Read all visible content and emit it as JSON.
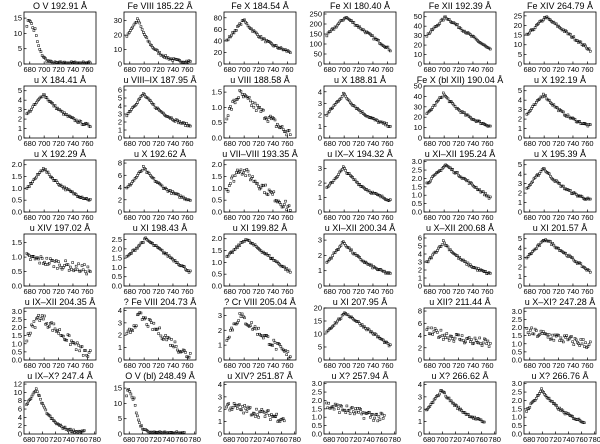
{
  "chart_data": [
    {
      "type": "scatter",
      "title": "O V 192.91 Å",
      "xticks": [
        "680",
        "700",
        "720",
        "740",
        "760"
      ],
      "yticks": [
        "0",
        "5",
        "10",
        "15"
      ],
      "ylim": [
        0,
        17
      ],
      "xlim": [
        672,
        772
      ],
      "profile": "early"
    },
    {
      "type": "scatter",
      "title": "Fe VIII 185.22 Å",
      "xticks": [
        "680",
        "700",
        "720",
        "740",
        "760"
      ],
      "yticks": [
        "0",
        "10",
        "20",
        "30"
      ],
      "ylim": [
        0,
        36
      ],
      "xlim": [
        672,
        772
      ],
      "profile": "peak690"
    },
    {
      "type": "scatter",
      "title": "Fe X 184.54 Å",
      "xticks": [
        "680",
        "700",
        "720",
        "740",
        "760"
      ],
      "yticks": [
        "0",
        "20",
        "40",
        "60",
        "80"
      ],
      "ylim": [
        0,
        90
      ],
      "xlim": [
        672,
        772
      ],
      "profile": "peak700"
    },
    {
      "type": "scatter",
      "title": "Fe XI 180.40 Å",
      "xticks": [
        "680",
        "700",
        "720",
        "740",
        "760"
      ],
      "yticks": [
        "0",
        "50",
        "100",
        "150",
        "200",
        "250"
      ],
      "ylim": [
        0,
        260
      ],
      "xlim": [
        672,
        772
      ],
      "profile": "broad"
    },
    {
      "type": "scatter",
      "title": "Fe XII 192.39 Å",
      "xticks": [
        "680",
        "700",
        "720",
        "740",
        "760"
      ],
      "yticks": [
        "0",
        "10",
        "20",
        "30",
        "40",
        "50"
      ],
      "ylim": [
        0,
        55
      ],
      "xlim": [
        672,
        772
      ],
      "profile": "broad"
    },
    {
      "type": "scatter",
      "title": "Fe XIV 264.79 Å",
      "xticks": [
        "680",
        "700",
        "720",
        "740",
        "760"
      ],
      "yticks": [
        "0",
        "5",
        "10",
        "15",
        "20",
        "25"
      ],
      "ylim": [
        0,
        27
      ],
      "xlim": [
        672,
        772
      ],
      "profile": "broad"
    },
    {
      "type": "scatter",
      "title": "u X 184.41 Å",
      "xticks": [
        "680",
        "700",
        "720",
        "740",
        "760"
      ],
      "yticks": [
        "0",
        "1",
        "2",
        "3",
        "4",
        "5"
      ],
      "ylim": [
        0,
        5.5
      ],
      "xlim": [
        672,
        772
      ],
      "profile": "peak700"
    },
    {
      "type": "scatter",
      "title": "u VIII–IX 187.95 Å",
      "xticks": [
        "680",
        "700",
        "720",
        "740",
        "760"
      ],
      "yticks": [
        "0",
        "1",
        "2",
        "3",
        "4",
        "5",
        "6"
      ],
      "ylim": [
        0,
        6.5
      ],
      "xlim": [
        672,
        772
      ],
      "profile": "peak700"
    },
    {
      "type": "scatter",
      "title": "u VIII 188.58 Å",
      "xticks": [
        "680",
        "700",
        "720",
        "740",
        "760"
      ],
      "yticks": [
        "0.0",
        "0.5",
        "1.0",
        "1.5"
      ],
      "ylim": [
        0,
        1.7
      ],
      "xlim": [
        672,
        772
      ],
      "profile": "scatter_peak"
    },
    {
      "type": "scatter",
      "title": "u X 188.81 Å",
      "xticks": [
        "680",
        "700",
        "720",
        "740",
        "760"
      ],
      "yticks": [
        "0",
        "1",
        "2",
        "3",
        "4"
      ],
      "ylim": [
        0,
        4.5
      ],
      "xlim": [
        672,
        772
      ],
      "profile": "peak700"
    },
    {
      "type": "scatter",
      "title": "Fe X (bl XII) 190.04 Å",
      "xticks": [
        "680",
        "700",
        "720",
        "740",
        "760"
      ],
      "yticks": [
        "0",
        "10",
        "20",
        "30",
        "40",
        "50"
      ],
      "ylim": [
        0,
        50
      ],
      "xlim": [
        672,
        772
      ],
      "profile": "peak700"
    },
    {
      "type": "scatter",
      "title": "u X 192.19 Å",
      "xticks": [
        "680",
        "700",
        "720",
        "740",
        "760"
      ],
      "yticks": [
        "0",
        "1",
        "2",
        "3",
        "4",
        "5"
      ],
      "ylim": [
        0,
        5.5
      ],
      "xlim": [
        672,
        772
      ],
      "profile": "peak700"
    },
    {
      "type": "scatter",
      "title": "u X 192.29 Å",
      "xticks": [
        "680",
        "700",
        "720",
        "740",
        "760"
      ],
      "yticks": [
        "0.0",
        "0.5",
        "1.0",
        "1.5",
        "2.0"
      ],
      "ylim": [
        0,
        2.2
      ],
      "xlim": [
        672,
        772
      ],
      "profile": "peak700"
    },
    {
      "type": "scatter",
      "title": "u X 192.62 Å",
      "xticks": [
        "680",
        "700",
        "720",
        "740",
        "760"
      ],
      "yticks": [
        "0",
        "2",
        "4",
        "6",
        "8"
      ],
      "ylim": [
        0,
        8.5
      ],
      "xlim": [
        672,
        772
      ],
      "profile": "peak700"
    },
    {
      "type": "scatter",
      "title": "u VII–VIII 193.35 Å",
      "xticks": [
        "680",
        "700",
        "720",
        "740",
        "760"
      ],
      "yticks": [
        "0.0",
        "0.5",
        "1.0",
        "1.5",
        "2.0"
      ],
      "ylim": [
        0,
        2.2
      ],
      "xlim": [
        672,
        772
      ],
      "profile": "scatter_peak"
    },
    {
      "type": "scatter",
      "title": "u IX–X 194.32 Å",
      "xticks": [
        "680",
        "700",
        "720",
        "740",
        "760"
      ],
      "yticks": [
        "0",
        "1",
        "2",
        "3"
      ],
      "ylim": [
        0,
        3.6
      ],
      "xlim": [
        672,
        772
      ],
      "profile": "peak700"
    },
    {
      "type": "scatter",
      "title": "u XI–XII 195.24 Å",
      "xticks": [
        "680",
        "700",
        "720",
        "740",
        "760"
      ],
      "yticks": [
        "0.0",
        "0.5",
        "1.0",
        "1.5",
        "2.0",
        "2.5",
        "3.0"
      ],
      "ylim": [
        0,
        3.1
      ],
      "xlim": [
        672,
        772
      ],
      "profile": "broad"
    },
    {
      "type": "scatter",
      "title": "u X 195.39 Å",
      "xticks": [
        "680",
        "700",
        "720",
        "740",
        "760"
      ],
      "yticks": [
        "0",
        "1",
        "2",
        "3",
        "4",
        "5"
      ],
      "ylim": [
        0,
        5.5
      ],
      "xlim": [
        672,
        772
      ],
      "profile": "peak700"
    },
    {
      "type": "scatter",
      "title": "u XIV 197.02 Å",
      "xticks": [
        "680",
        "700",
        "720",
        "740",
        "760"
      ],
      "yticks": [
        "0.0",
        "0.5",
        "1.0",
        "1.5"
      ],
      "ylim": [
        0,
        1.8
      ],
      "xlim": [
        672,
        772
      ],
      "profile": "flat"
    },
    {
      "type": "scatter",
      "title": "u XI 198.43 Å",
      "xticks": [
        "680",
        "700",
        "720",
        "740",
        "760"
      ],
      "yticks": [
        "0.0",
        "0.5",
        "1.0",
        "1.5",
        "2.0",
        "2.5"
      ],
      "ylim": [
        0,
        2.8
      ],
      "xlim": [
        672,
        772
      ],
      "profile": "broad"
    },
    {
      "type": "scatter",
      "title": "u XI 199.82 Å",
      "xticks": [
        "680",
        "700",
        "720",
        "740",
        "760"
      ],
      "yticks": [
        "0.0",
        "0.5",
        "1.0",
        "1.5",
        "2.0"
      ],
      "ylim": [
        0,
        2.2
      ],
      "xlim": [
        672,
        772
      ],
      "profile": "broad"
    },
    {
      "type": "scatter",
      "title": "u XI–XII 200.34 Å",
      "xticks": [
        "680",
        "700",
        "720",
        "740",
        "760"
      ],
      "yticks": [
        "0",
        "1",
        "2",
        "3"
      ],
      "ylim": [
        0,
        3.4
      ],
      "xlim": [
        672,
        772
      ],
      "profile": "peak700"
    },
    {
      "type": "scatter",
      "title": "u X–XII 200.68 Å",
      "xticks": [
        "680",
        "700",
        "720",
        "740",
        "760"
      ],
      "yticks": [
        "0",
        "1",
        "2",
        "3",
        "4",
        "5",
        "6"
      ],
      "ylim": [
        0,
        6.5
      ],
      "xlim": [
        672,
        772
      ],
      "profile": "peak700"
    },
    {
      "type": "scatter",
      "title": "u XI 201.57 Å",
      "xticks": [
        "680",
        "700",
        "720",
        "740",
        "760"
      ],
      "yticks": [
        "0",
        "1",
        "2",
        "3",
        "4",
        "5"
      ],
      "ylim": [
        0,
        5.5
      ],
      "xlim": [
        672,
        772
      ],
      "profile": "broad"
    },
    {
      "type": "scatter",
      "title": "u IX–XII 204.35 Å",
      "xticks": [
        "680",
        "700",
        "720",
        "740",
        "760"
      ],
      "yticks": [
        "0.0",
        "0.5",
        "1.0",
        "1.5",
        "2.0",
        "2.5",
        "3.0"
      ],
      "ylim": [
        0,
        3.2
      ],
      "xlim": [
        672,
        772
      ],
      "profile": "scatter_peak"
    },
    {
      "type": "scatter",
      "title": "? Fe VIII 204.73 Å",
      "xticks": [
        "680",
        "700",
        "720",
        "740",
        "760"
      ],
      "yticks": [
        "0",
        "1",
        "2",
        "3",
        "4"
      ],
      "ylim": [
        0,
        4.2
      ],
      "xlim": [
        672,
        772
      ],
      "profile": "scatter_peak"
    },
    {
      "type": "scatter",
      "title": "? Cr VIII 205.04 Å",
      "xticks": [
        "680",
        "700",
        "720",
        "740",
        "760"
      ],
      "yticks": [
        "0",
        "1",
        "2",
        "3"
      ],
      "ylim": [
        0,
        3.5
      ],
      "xlim": [
        672,
        772
      ],
      "profile": "scatter_peak"
    },
    {
      "type": "scatter",
      "title": "u XI 207.95 Å",
      "xticks": [
        "680",
        "700",
        "720",
        "740",
        "760"
      ],
      "yticks": [
        "0",
        "5",
        "10",
        "15",
        "20"
      ],
      "ylim": [
        0,
        20
      ],
      "xlim": [
        672,
        772
      ],
      "profile": "broad"
    },
    {
      "type": "scatter",
      "title": "u XII? 211.44 Å",
      "xticks": [
        "680",
        "700",
        "720",
        "740",
        "760"
      ],
      "yticks": [
        "0",
        "2",
        "4",
        "6",
        "8"
      ],
      "ylim": [
        0,
        8.5
      ],
      "xlim": [
        672,
        772
      ],
      "profile": "flat"
    },
    {
      "type": "scatter",
      "title": "u X–XI? 247.28 Å",
      "xticks": [
        "680",
        "700",
        "720",
        "740",
        "760"
      ],
      "yticks": [
        "0.0",
        "0.5",
        "1.0",
        "1.5",
        "2.0",
        "2.5",
        "3.0"
      ],
      "ylim": [
        0,
        3.2
      ],
      "xlim": [
        672,
        772
      ],
      "profile": "flat"
    },
    {
      "type": "scatter",
      "title": "u IX–X? 247.4 Å",
      "xticks": [
        "680",
        "700",
        "720",
        "740",
        "760",
        "780"
      ],
      "yticks": [
        "0",
        "2",
        "4",
        "6",
        "8",
        "10",
        "12"
      ],
      "ylim": [
        0,
        12.5
      ],
      "xlim": [
        672,
        782
      ],
      "profile": "peak690"
    },
    {
      "type": "scatter",
      "title": "O V (bl) 248.49 Å",
      "xticks": [
        "680",
        "700",
        "720",
        "740",
        "760",
        "780"
      ],
      "yticks": [
        "0",
        "5",
        "10",
        "15"
      ],
      "ylim": [
        0,
        17
      ],
      "xlim": [
        672,
        782
      ],
      "profile": "early"
    },
    {
      "type": "scatter",
      "title": "u XIV? 251.87 Å",
      "xticks": [
        "680",
        "700",
        "720",
        "740",
        "760",
        "780"
      ],
      "yticks": [
        "0",
        "1",
        "2",
        "3",
        "4"
      ],
      "ylim": [
        0,
        4.2
      ],
      "xlim": [
        672,
        782
      ],
      "profile": "flat"
    },
    {
      "type": "scatter",
      "title": "u X? 257.94 Å",
      "xticks": [
        "680",
        "700",
        "720",
        "740",
        "760",
        "780"
      ],
      "yticks": [
        "0.0",
        "0.5",
        "1.0",
        "1.5",
        "2.0",
        "2.5",
        "3.0"
      ],
      "ylim": [
        0,
        3.1
      ],
      "xlim": [
        672,
        782
      ],
      "profile": "flat"
    },
    {
      "type": "scatter",
      "title": "u X? 266.62 Å",
      "xticks": [
        "680",
        "700",
        "720",
        "740",
        "760",
        "780"
      ],
      "yticks": [
        "0",
        "1",
        "2",
        "3",
        "4"
      ],
      "ylim": [
        0,
        4.2
      ],
      "xlim": [
        672,
        782
      ],
      "profile": "peak700"
    },
    {
      "type": "scatter",
      "title": "u X? 266.76 Å",
      "xticks": [
        "680",
        "700",
        "720",
        "740",
        "760",
        "780"
      ],
      "yticks": [
        "0.0",
        "0.5",
        "1.0",
        "1.5",
        "2.0",
        "2.5",
        "3.0"
      ],
      "ylim": [
        0,
        3.1
      ],
      "xlim": [
        672,
        782
      ],
      "profile": "peak700"
    }
  ]
}
